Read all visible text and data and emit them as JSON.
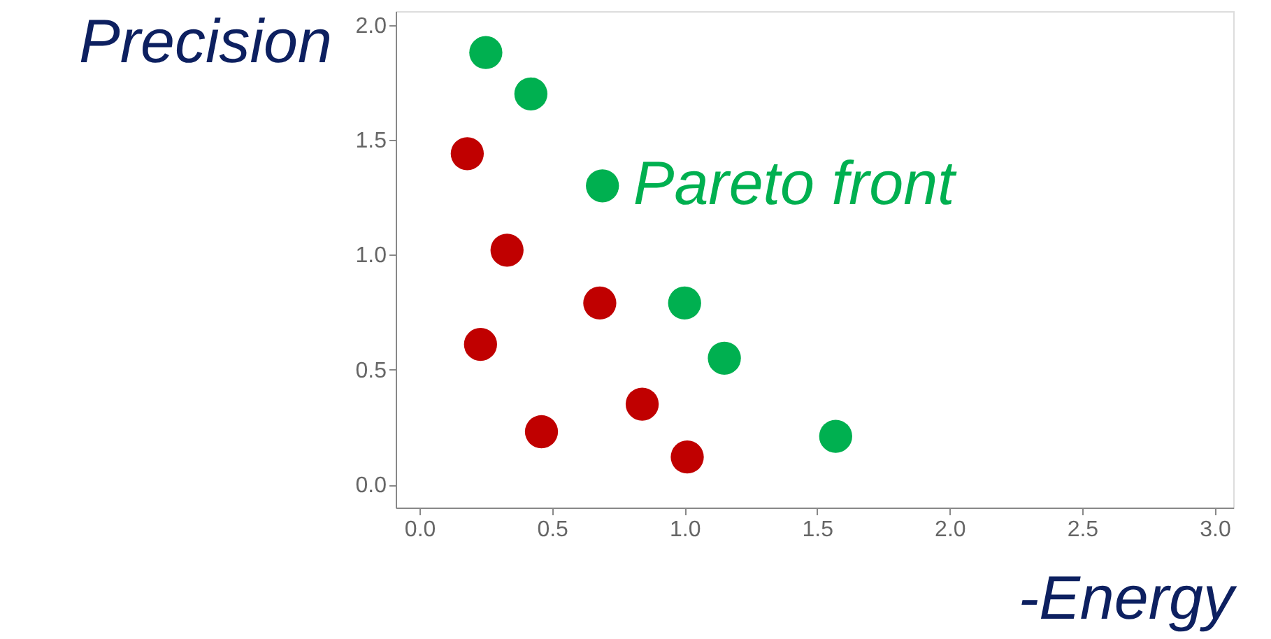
{
  "chart_data": {
    "type": "scatter",
    "xlabel": "-Energy",
    "ylabel": "Precision",
    "xlim": [
      -0.09,
      3.07
    ],
    "ylim": [
      -0.1,
      2.06
    ],
    "xticks": [
      {
        "value": 0,
        "label": "0.0"
      },
      {
        "value": 0.5,
        "label": "0.5"
      },
      {
        "value": 1,
        "label": "1.0"
      },
      {
        "value": 1.5,
        "label": "1.5"
      },
      {
        "value": 2,
        "label": "2.0"
      },
      {
        "value": 2.5,
        "label": "2.5"
      },
      {
        "value": 3,
        "label": "3.0"
      }
    ],
    "yticks": [
      {
        "value": 0,
        "label": "0.0"
      },
      {
        "value": 0.5,
        "label": "0.5"
      },
      {
        "value": 1,
        "label": "1.0"
      },
      {
        "value": 1.5,
        "label": "1.5"
      },
      {
        "value": 2,
        "label": "2.0"
      }
    ],
    "grid": false,
    "legend": false,
    "marker": "circle",
    "series": [
      {
        "name": "Pareto front",
        "color": "#00b050",
        "x": [
          0.25,
          0.42,
          0.69,
          1.0,
          1.15,
          1.57
        ],
        "values": [
          1.88,
          1.7,
          1.3,
          0.79,
          0.55,
          0.21
        ]
      },
      {
        "color": "#c00000",
        "x": [
          0.18,
          0.33,
          0.68,
          0.23,
          0.84,
          0.46,
          1.01
        ],
        "values": [
          1.44,
          1.02,
          0.79,
          0.61,
          0.35,
          0.23,
          0.12
        ]
      }
    ]
  }
}
